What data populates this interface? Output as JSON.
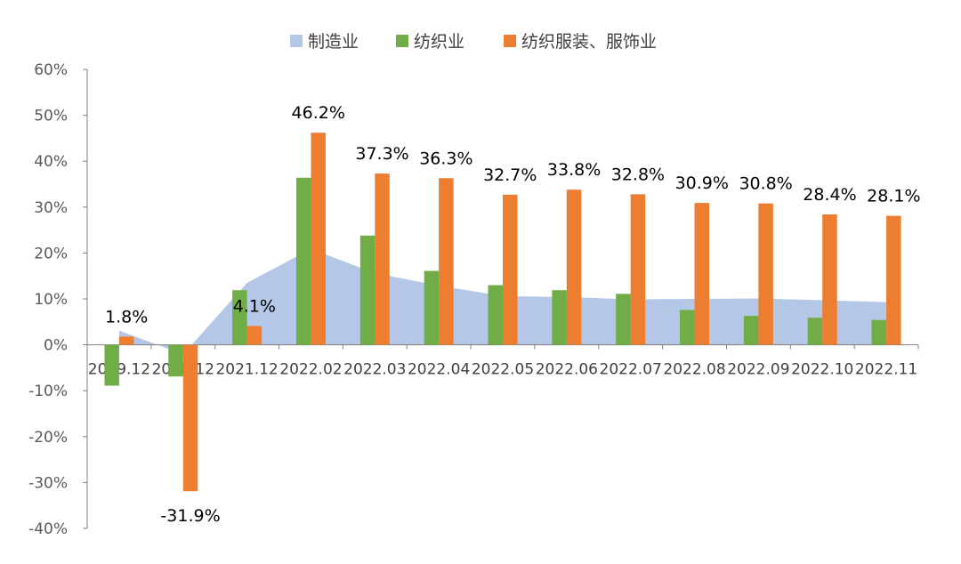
{
  "chart_data": {
    "type": "bar",
    "categories": [
      "2019.12",
      "2020.12",
      "2021.12",
      "2022.02",
      "2022.03",
      "2022.04",
      "2022.05",
      "2022.06",
      "2022.07",
      "2022.08",
      "2022.09",
      "2022.10",
      "2022.11"
    ],
    "series": [
      {
        "name": "制造业",
        "kind": "area",
        "color": "#B4C7E7",
        "values": [
          3.1,
          -2.1,
          13.5,
          20.9,
          15.6,
          12.9,
          10.6,
          10.4,
          9.9,
          10.0,
          10.1,
          9.7,
          9.3
        ]
      },
      {
        "name": "纺织业",
        "kind": "bar",
        "color": "#70AD47",
        "values": [
          -8.9,
          -6.9,
          11.9,
          36.4,
          23.8,
          16.1,
          13.0,
          11.9,
          11.1,
          7.6,
          6.3,
          5.9,
          5.4
        ]
      },
      {
        "name": "纺织服装、服饰业",
        "kind": "bar",
        "color": "#ED7D31",
        "values": [
          1.8,
          -31.9,
          4.1,
          46.2,
          37.3,
          36.3,
          32.7,
          33.8,
          32.8,
          30.9,
          30.8,
          28.4,
          28.1
        ]
      }
    ],
    "data_labels": [
      "1.8%",
      "-31.9%",
      "4.1%",
      "46.2%",
      "37.3%",
      "36.3%",
      "32.7%",
      "33.8%",
      "32.8%",
      "30.9%",
      "30.8%",
      "28.4%",
      "28.1%"
    ],
    "y_ticks": [
      "60%",
      "50%",
      "40%",
      "30%",
      "20%",
      "10%",
      "0%",
      "-10%",
      "-20%",
      "-30%",
      "-40%"
    ],
    "ylim": [
      -40,
      60
    ],
    "y_unit": "%",
    "grid": false,
    "legend_position": "top-center",
    "title": "",
    "xlabel": "",
    "ylabel": ""
  }
}
